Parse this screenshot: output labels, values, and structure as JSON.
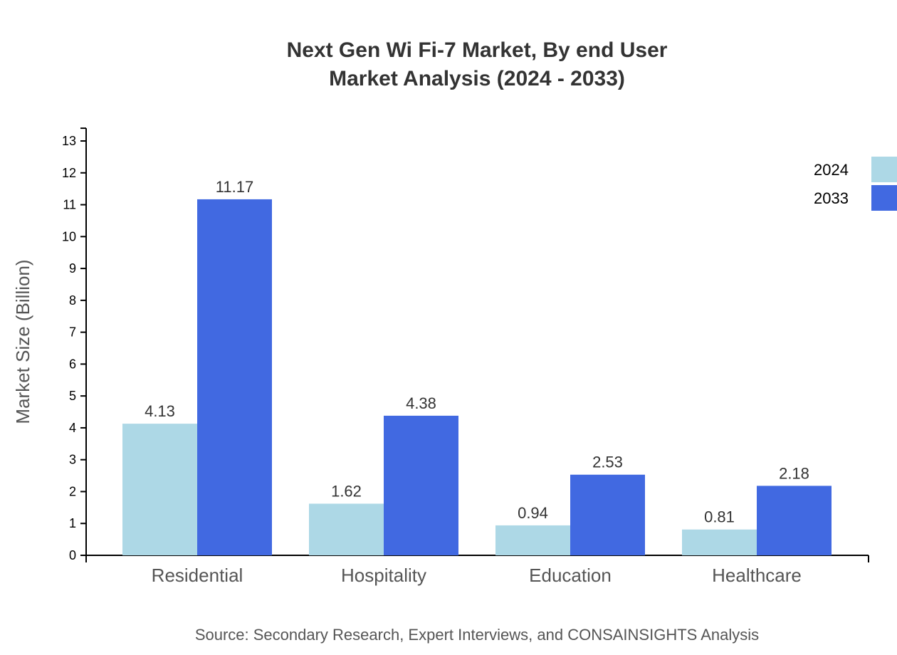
{
  "chart_data": {
    "type": "bar",
    "title": [
      "Next Gen Wi Fi-7 Market, By end User",
      "Market Analysis (2024 - 2033)"
    ],
    "ylabel": "Market Size (Billion)",
    "xlabel": "",
    "ylim": [
      0,
      13.4
    ],
    "yticks": [
      0,
      1,
      2,
      3,
      4,
      5,
      6,
      7,
      8,
      9,
      10,
      11,
      12,
      13
    ],
    "categories": [
      "Residential",
      "Hospitality",
      "Education",
      "Healthcare"
    ],
    "series": [
      {
        "name": "2024",
        "color": "#ADD8E6",
        "values": [
          4.13,
          1.62,
          0.94,
          0.81
        ]
      },
      {
        "name": "2033",
        "color": "#4169E1",
        "values": [
          11.17,
          4.38,
          2.53,
          2.18
        ]
      }
    ],
    "legend": "top-right",
    "grid": false,
    "source": "Source: Secondary Research, Expert Interviews, and CONSAINSIGHTS Analysis"
  }
}
